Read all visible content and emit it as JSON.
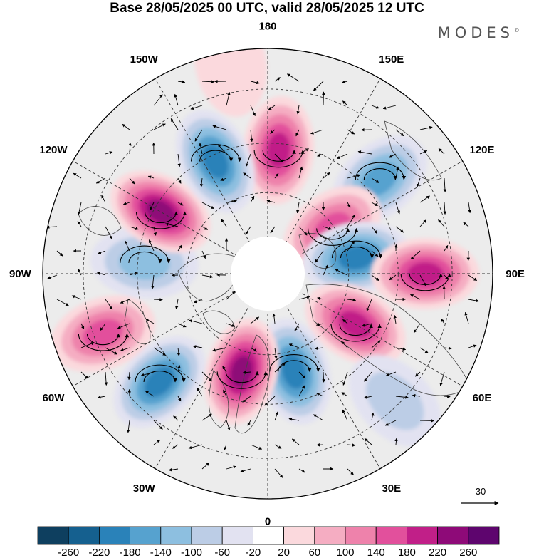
{
  "title": "Base 28/05/2025 00 UTC, valid 28/05/2025 12 UTC",
  "brand": "MODES",
  "brand_mark": "©",
  "map": {
    "projection": "north-polar-stereographic",
    "center_lat": 90,
    "longitude_labels": [
      {
        "text": "180",
        "lon": 180
      },
      {
        "text": "150E",
        "lon": 150
      },
      {
        "text": "120E",
        "lon": 120
      },
      {
        "text": "90E",
        "lon": 90
      },
      {
        "text": "60E",
        "lon": 60
      },
      {
        "text": "30E",
        "lon": 30
      },
      {
        "text": "0",
        "lon": 0
      },
      {
        "text": "30W",
        "lon": -30
      },
      {
        "text": "60W",
        "lon": -60
      },
      {
        "text": "90W",
        "lon": -90
      },
      {
        "text": "120W",
        "lon": -120
      },
      {
        "text": "150W",
        "lon": -150
      }
    ],
    "anomalies": [
      {
        "lon": 175,
        "dist": 0.55,
        "value": 200
      },
      {
        "lon": 130,
        "dist": 0.65,
        "value": -160
      },
      {
        "lon": 125,
        "dist": 0.35,
        "value": 160
      },
      {
        "lon": 100,
        "dist": 0.4,
        "value": -180
      },
      {
        "lon": 90,
        "dist": 0.7,
        "value": 190
      },
      {
        "lon": 60,
        "dist": 0.45,
        "value": 210
      },
      {
        "lon": 45,
        "dist": 0.8,
        "value": -60
      },
      {
        "lon": 15,
        "dist": 0.45,
        "value": -180
      },
      {
        "lon": -15,
        "dist": 0.45,
        "value": 230
      },
      {
        "lon": -45,
        "dist": 0.68,
        "value": -190
      },
      {
        "lon": -70,
        "dist": 0.78,
        "value": 150
      },
      {
        "lon": -95,
        "dist": 0.55,
        "value": -110
      },
      {
        "lon": -120,
        "dist": 0.55,
        "value": 250
      },
      {
        "lon": -155,
        "dist": 0.55,
        "value": -180
      },
      {
        "lon": -170,
        "dist": 0.95,
        "value": 40
      }
    ]
  },
  "vector_key": {
    "label": "30"
  },
  "colorbar": {
    "colors": [
      "#0e3f5f",
      "#15608f",
      "#2a82b9",
      "#56a2cf",
      "#8dbfe0",
      "#bccde6",
      "#e2e2f1",
      "#ffffff",
      "#fbd9dd",
      "#f5adc2",
      "#ee82ab",
      "#e2509c",
      "#c11f88",
      "#8e0a78",
      "#5e056e"
    ],
    "ticks": [
      "-260",
      "-220",
      "-180",
      "-140",
      "-100",
      "-60",
      "-20",
      "20",
      "60",
      "100",
      "140",
      "180",
      "220",
      "260"
    ]
  }
}
